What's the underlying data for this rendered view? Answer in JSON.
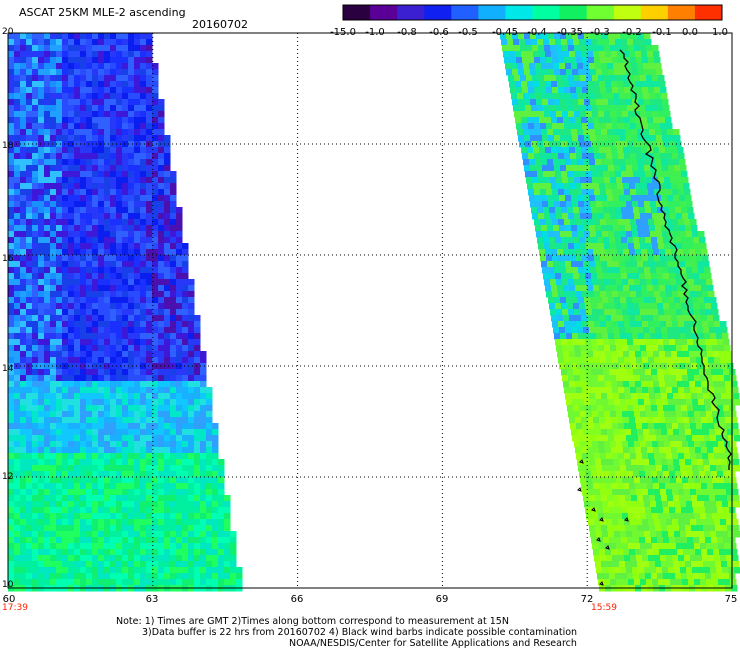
{
  "header": {
    "title": "ASCAT 25KM MLE-2 ascending",
    "date": "20160702"
  },
  "colorbar": {
    "labels": [
      "-15.0",
      "-1.0",
      "-0.8",
      "-0.6",
      "-0.5",
      "-0.45",
      "-0.4",
      "-0.35",
      "-0.3",
      "-0.2",
      "-0.1",
      "0.0",
      "1.0"
    ],
    "colors": [
      "#2a0040",
      "#5a0096",
      "#3a20d0",
      "#1020f0",
      "#2060ff",
      "#10b0ff",
      "#00e8e8",
      "#00ffa0",
      "#10f060",
      "#70ff30",
      "#c0ff10",
      "#ffd000",
      "#ff8000",
      "#ff3000"
    ]
  },
  "axes": {
    "y_ticks": [
      "20",
      "18",
      "16",
      "14",
      "12",
      "10"
    ],
    "x_ticks": [
      "60",
      "63",
      "66",
      "69",
      "72",
      "75"
    ],
    "pass_times": [
      {
        "label": "17:39",
        "lon": 60
      },
      {
        "label": "15:59",
        "lon": 73
      }
    ],
    "time_color": "#ff2000"
  },
  "notes": [
    "Note: 1) Times are GMT 2)Times along bottom correspond to measurement at 15N",
    "3)Data buffer is 22 hrs from 20160702 4) Black wind barbs indicate possible contamination",
    "NOAA/NESDIS/Center for Satellite Applications and Research"
  ]
}
